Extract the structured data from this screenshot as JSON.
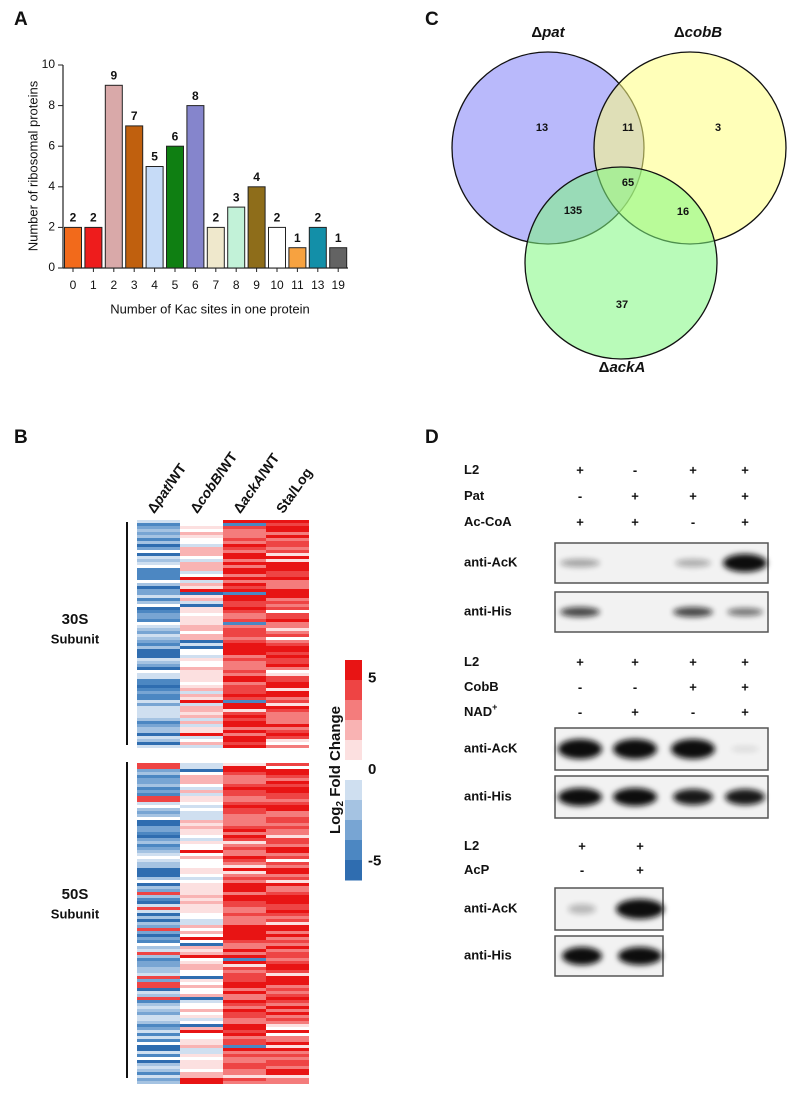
{
  "panel_labels": [
    "A",
    "B",
    "C",
    "D"
  ],
  "chart_data": [
    {
      "type": "bar",
      "categories": [
        "0",
        "1",
        "2",
        "3",
        "4",
        "5",
        "6",
        "7",
        "8",
        "9",
        "10",
        "11",
        "13",
        "19"
      ],
      "values": [
        2,
        2,
        9,
        7,
        5,
        6,
        8,
        2,
        3,
        4,
        2,
        1,
        2,
        1
      ],
      "colors": [
        "#f26a1b",
        "#ee1c1c",
        "#d9a9a9",
        "#c0600e",
        "#c6dbf7",
        "#0f7f12",
        "#8585cc",
        "#efe8cc",
        "#c2f2d8",
        "#8e6d1a",
        "#ffffff",
        "#f7a240",
        "#138fa8",
        "#636363"
      ],
      "xlabel": "Number of Kac sites in one protein",
      "ylabel": "Number of  ribosomal proteins",
      "ylim": [
        0,
        10
      ],
      "yticks": [
        0,
        2,
        4,
        6,
        8,
        10
      ]
    },
    {
      "type": "venn",
      "sets": [
        {
          "prefix": "Δ",
          "name": "pat",
          "color": "#7f7ff8"
        },
        {
          "prefix": "Δ",
          "name": "cobB",
          "color": "#ffff80"
        },
        {
          "prefix": "Δ",
          "name": "ackA",
          "color": "#80f880"
        }
      ],
      "regions": [
        "pat",
        "pat∩cobB",
        "cobB",
        "all",
        "pat∩ackA",
        "cobB∩ackA",
        "ackA"
      ],
      "values": [
        13,
        11,
        3,
        65,
        135,
        16,
        37
      ]
    }
  ],
  "heatmap": {
    "columns": [
      {
        "prefix": "Δ",
        "name": "pat",
        "suffix": "/WT"
      },
      {
        "prefix": "Δ",
        "name": "cobB",
        "suffix": "/WT"
      },
      {
        "prefix": "Δ",
        "name": "ackA",
        "suffix": "/WT"
      },
      {
        "name": "Sta/Log"
      }
    ],
    "groups": [
      {
        "name": "30S",
        "sub": "Subunit"
      },
      {
        "name": "50S",
        "sub": "Subunit"
      }
    ],
    "colorbar": {
      "title": "Log",
      "sub": "2",
      "rest": " Fold Change",
      "clim": [
        -6,
        6
      ],
      "ticks": [
        5,
        0,
        -5
      ]
    }
  },
  "blots": [
    {
      "conditions": [
        {
          "name": "L2",
          "signs": [
            "+",
            "-",
            "+",
            "+"
          ]
        },
        {
          "name": "Pat",
          "signs": [
            "-",
            "+",
            "+",
            "+"
          ]
        },
        {
          "name": "Ac-CoA",
          "signs": [
            "+",
            "+",
            "-",
            "+"
          ]
        }
      ],
      "antibodies": [
        "anti-AcK",
        "anti-His"
      ]
    },
    {
      "conditions": [
        {
          "name": "L2",
          "signs": [
            "+",
            "+",
            "+",
            "+"
          ]
        },
        {
          "name": "CobB",
          "signs": [
            "-",
            "-",
            "+",
            "+"
          ]
        },
        {
          "name": "NAD",
          "sup": "+",
          "signs": [
            "-",
            "+",
            "-",
            "+"
          ]
        }
      ],
      "antibodies": [
        "anti-AcK",
        "anti-His"
      ]
    },
    {
      "conditions": [
        {
          "name": "L2",
          "signs": [
            "+",
            "+"
          ]
        },
        {
          "name": "AcP",
          "signs": [
            "-",
            "+"
          ]
        }
      ],
      "antibodies": [
        "anti-AcK",
        "anti-His"
      ]
    }
  ]
}
